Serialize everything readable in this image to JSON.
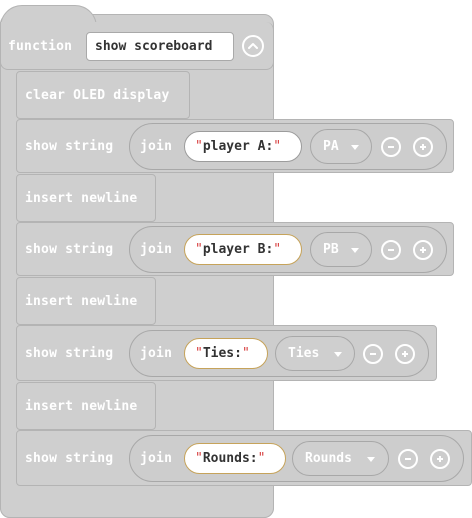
{
  "function_block": {
    "keyword": "function",
    "name": "show scoreboard"
  },
  "blocks": [
    {
      "type": "statement",
      "label": "clear OLED display"
    },
    {
      "type": "show_string",
      "label": "show string",
      "join": "join",
      "string": "player A:",
      "variable": "PA"
    },
    {
      "type": "statement",
      "label": "insert newline"
    },
    {
      "type": "show_string",
      "label": "show string",
      "join": "join",
      "string": "player B:",
      "variable": "PB"
    },
    {
      "type": "statement",
      "label": "insert newline"
    },
    {
      "type": "show_string",
      "label": "show string",
      "join": "join",
      "string": "Ties:",
      "variable": "Ties"
    },
    {
      "type": "statement",
      "label": "insert newline"
    },
    {
      "type": "show_string",
      "label": "show string",
      "join": "join",
      "string": "Rounds:",
      "variable": "Rounds"
    }
  ],
  "quote_mark": "\"",
  "colors": {
    "block": "#cfcfcf",
    "block_border": "#b4b4b4",
    "selected_string_border": "#c6a35a",
    "quote": "#d63a3a"
  }
}
